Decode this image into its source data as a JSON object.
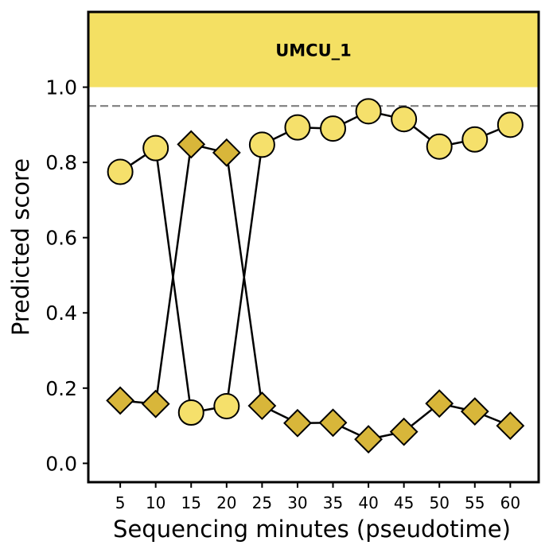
{
  "chart_data": {
    "type": "line",
    "band_label": "UMCU_1",
    "xlabel": "Sequencing minutes (pseudotime)",
    "ylabel": "Predicted score",
    "ylim": [
      -0.05,
      1.2
    ],
    "x_ticks": [
      5,
      10,
      15,
      20,
      25,
      30,
      35,
      40,
      45,
      50,
      55,
      60
    ],
    "y_ticks": [
      0.0,
      0.2,
      0.4,
      0.6,
      0.8,
      1.0
    ],
    "y_tick_labels": [
      "0.0",
      "0.2",
      "0.4",
      "0.6",
      "0.8",
      "1.0"
    ],
    "threshold": 0.95,
    "band_range": [
      1.0,
      1.2
    ],
    "colors": {
      "band_fill": "#f4e063",
      "circle_fill": "#f5e06b",
      "diamond_fill": "#d8b63a",
      "dashed_line": "#7f7f7f",
      "stroke": "#000000"
    },
    "grid": false,
    "series": [
      {
        "marker": "circle",
        "x": [
          5,
          10,
          15,
          20,
          25,
          30,
          35,
          40,
          45,
          50,
          55,
          60
        ],
        "values": [
          0.775,
          0.838,
          0.135,
          0.152,
          0.847,
          0.893,
          0.89,
          0.936,
          0.915,
          0.842,
          0.861,
          0.9
        ]
      },
      {
        "marker": "diamond",
        "x": [
          5,
          10,
          15,
          20,
          25,
          30,
          35,
          40,
          45,
          50,
          55,
          60
        ],
        "values": [
          0.167,
          0.158,
          0.848,
          0.826,
          0.153,
          0.107,
          0.108,
          0.064,
          0.084,
          0.159,
          0.138,
          0.1
        ]
      }
    ]
  }
}
